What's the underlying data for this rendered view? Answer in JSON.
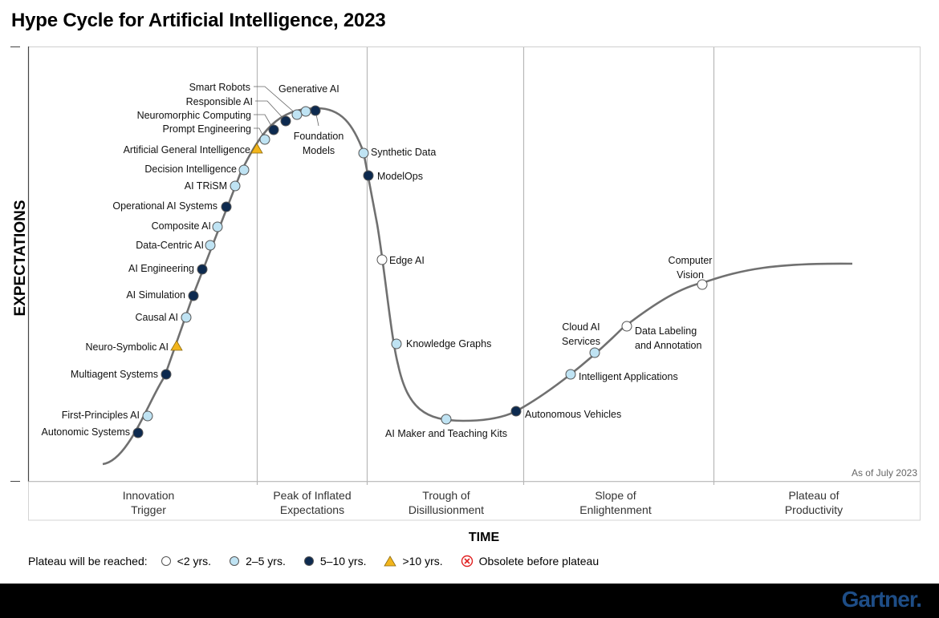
{
  "title": "Hype Cycle for Artificial Intelligence, 2023",
  "y_axis_label": "EXPECTATIONS",
  "x_axis_label": "TIME",
  "as_of": "As of July 2023",
  "phases": [
    {
      "line1": "Innovation",
      "line2": "Trigger"
    },
    {
      "line1": "Peak of Inflated",
      "line2": "Expectations"
    },
    {
      "line1": "Trough of",
      "line2": "Disillusionment"
    },
    {
      "line1": "Slope of",
      "line2": "Enlightenment"
    },
    {
      "line1": "Plateau of",
      "line2": "Productivity"
    }
  ],
  "legend": {
    "label": "Plateau will be reached:",
    "items": [
      {
        "key": "lt2",
        "label": "<2 yrs."
      },
      {
        "key": "2to5",
        "label": "2–5 yrs."
      },
      {
        "key": "5to10",
        "label": "5–10 yrs."
      },
      {
        "key": "gt10",
        "label": ">10 yrs."
      },
      {
        "key": "obsolete",
        "label": "Obsolete before plateau"
      }
    ]
  },
  "colors": {
    "lt2": "#ffffff",
    "2to5": "#bfe3f3",
    "5to10": "#0d2a4f",
    "gt10": "#f2b51c",
    "obsolete": "#e02020",
    "curve": "#707070",
    "grid": "#b8b8b8",
    "logo": "#1e4d86"
  },
  "technologies": [
    {
      "name": "Autonomic Systems",
      "category": "5to10"
    },
    {
      "name": "First-Principles AI",
      "category": "2to5"
    },
    {
      "name": "Multiagent Systems",
      "category": "5to10"
    },
    {
      "name": "Neuro-Symbolic AI",
      "category": "gt10"
    },
    {
      "name": "Causal AI",
      "category": "2to5"
    },
    {
      "name": "AI Simulation",
      "category": "5to10"
    },
    {
      "name": "AI Engineering",
      "category": "5to10"
    },
    {
      "name": "Data-Centric AI",
      "category": "2to5"
    },
    {
      "name": "Composite AI",
      "category": "2to5"
    },
    {
      "name": "Operational AI Systems",
      "category": "5to10"
    },
    {
      "name": "AI TRiSM",
      "category": "2to5"
    },
    {
      "name": "Decision Intelligence",
      "category": "2to5"
    },
    {
      "name": "Artificial General Intelligence",
      "category": "gt10"
    },
    {
      "name": "Prompt Engineering",
      "category": "2to5"
    },
    {
      "name": "Neuromorphic Computing",
      "category": "5to10"
    },
    {
      "name": "Responsible AI",
      "category": "5to10"
    },
    {
      "name": "Smart Robots",
      "category": "2to5"
    },
    {
      "name": "Generative AI",
      "category": "2to5"
    },
    {
      "name": "Foundation Models",
      "category": "5to10"
    },
    {
      "name": "Synthetic Data",
      "category": "2to5"
    },
    {
      "name": "ModelOps",
      "category": "5to10"
    },
    {
      "name": "Edge AI",
      "category": "lt2"
    },
    {
      "name": "Knowledge Graphs",
      "category": "2to5"
    },
    {
      "name": "AI Maker and Teaching Kits",
      "category": "2to5"
    },
    {
      "name": "Autonomous Vehicles",
      "category": "5to10"
    },
    {
      "name": "Intelligent Applications",
      "category": "2to5"
    },
    {
      "name": "Cloud AI Services",
      "category": "2to5"
    },
    {
      "name": "Data Labeling and Annotation",
      "category": "lt2"
    },
    {
      "name": "Computer Vision",
      "category": "lt2"
    }
  ],
  "brand": "Gartner."
}
